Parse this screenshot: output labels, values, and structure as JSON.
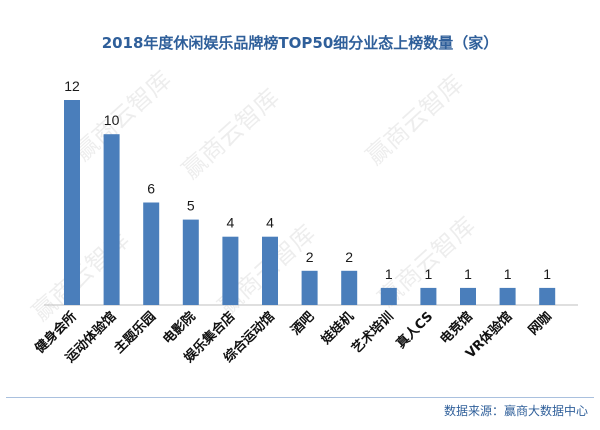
{
  "watermark": "赢商云智库",
  "source": "数据来源：赢商大数据中心",
  "colors": {
    "bar": "#4a7ebb",
    "title": "#2f5f9a",
    "axis": "#bfbfbf"
  },
  "chart_data": {
    "type": "bar",
    "title": "2018年度休闲娱乐品牌榜TOP50细分业态上榜数量（家）",
    "categories": [
      "健身会所",
      "运动体验馆",
      "主题乐园",
      "电影院",
      "娱乐集合店",
      "综合运动馆",
      "酒吧",
      "娃娃机",
      "艺术培训",
      "真人CS",
      "电竞馆",
      "VR体验馆",
      "网咖"
    ],
    "values": [
      12,
      10,
      6,
      5,
      4,
      4,
      2,
      2,
      1,
      1,
      1,
      1,
      1
    ],
    "xlabel": "",
    "ylabel": "",
    "ylim": [
      0,
      12
    ],
    "grid": false,
    "data_labels": true
  }
}
